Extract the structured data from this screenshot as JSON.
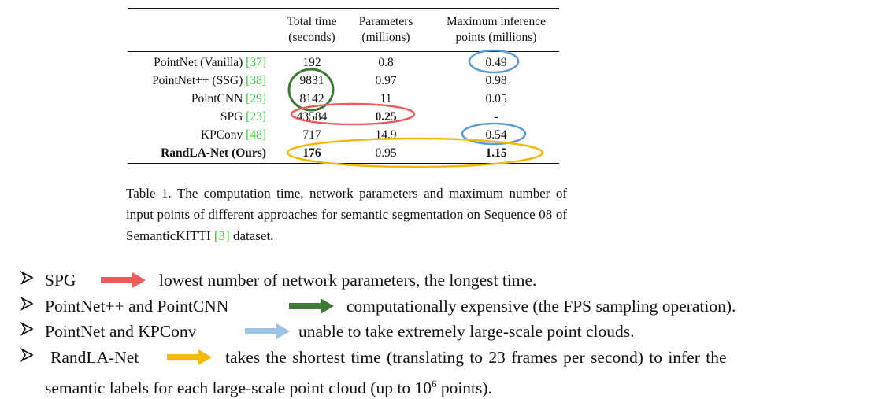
{
  "table": {
    "headers": [
      {
        "l1": "Total time",
        "l2": "(seconds)"
      },
      {
        "l1": "Parameters",
        "l2": "(millions)"
      },
      {
        "l1": "Maximum inference",
        "l2": "points (millions)"
      }
    ],
    "rows": [
      {
        "method": "PointNet (Vanilla) ",
        "cite": "[37]",
        "time": "192",
        "params": "0.8",
        "points": "0.49"
      },
      {
        "method": "PointNet++ (SSG) ",
        "cite": "[38]",
        "time": "9831",
        "params": "0.97",
        "points": "0.98"
      },
      {
        "method": "PointCNN ",
        "cite": "[29]",
        "time": "8142",
        "params": "11",
        "points": "0.05"
      },
      {
        "method": "SPG ",
        "cite": "[23]",
        "time": "43584",
        "params": "0.25",
        "points": "-"
      },
      {
        "method": "KPConv ",
        "cite": "[48]",
        "time": "717",
        "params": "14.9",
        "points": "0.54"
      },
      {
        "method": "RandLA-Net (Ours)",
        "cite": "",
        "time": "176",
        "params": "0.95",
        "points": "1.15"
      }
    ]
  },
  "caption": {
    "before": "Table 1. The computation time, network parameters and maximum number of input points of different approaches for semantic segmentation on Sequence 08 of SemanticKITTI ",
    "cite": "[3]",
    "after": " dataset."
  },
  "colors": {
    "red": "#f05a5a",
    "green": "#3d7a35",
    "blue": "#5b9bd5",
    "light_blue": "#9cc3e6",
    "yellow": "#f5b800",
    "cite_green": "#3fbf3f"
  },
  "bullets": [
    {
      "label": "SPG",
      "text": "lowest number of network parameters, the longest time."
    },
    {
      "label": "PointNet++  and PointCNN",
      "text": "computationally expensive (the FPS sampling operation)."
    },
    {
      "label": "PointNet and KPConv",
      "text": "unable to take extremely large-scale point clouds."
    },
    {
      "label": "RandLA-Net",
      "text": "takes the shortest time (translating to 23 frames per second) to infer the",
      "line2_before": "semantic labels for each large-scale point cloud (up to 10",
      "line2_sup": "6",
      "line2_after": " points)."
    }
  ]
}
